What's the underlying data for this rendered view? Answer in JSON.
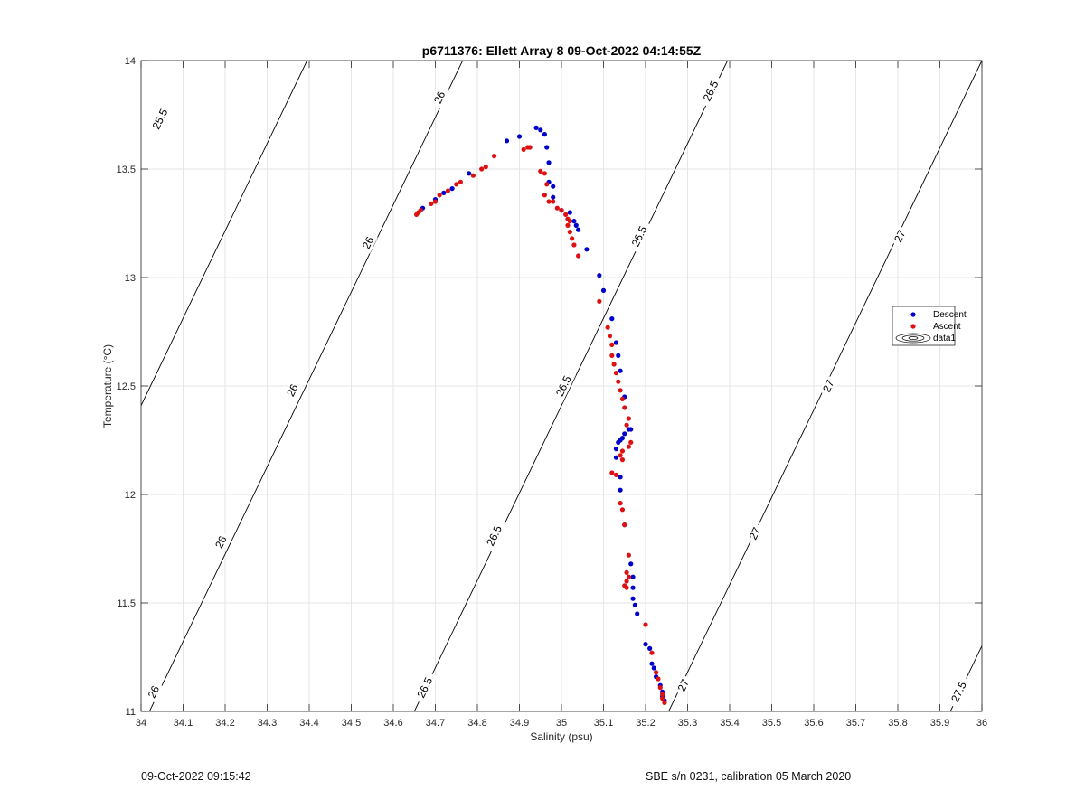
{
  "chart_data": {
    "type": "scatter",
    "title": "p6711376: Ellett Array 8 09-Oct-2022 04:14:55Z",
    "xlabel": "Salinity (psu)",
    "ylabel": "Temperature (°C)",
    "xlim": [
      34,
      36
    ],
    "ylim": [
      11,
      14
    ],
    "x_ticks": [
      34,
      34.1,
      34.2,
      34.3,
      34.4,
      34.5,
      34.6,
      34.7,
      34.8,
      34.9,
      35,
      35.1,
      35.2,
      35.3,
      35.4,
      35.5,
      35.6,
      35.7,
      35.8,
      35.9,
      36
    ],
    "x_tick_labels": [
      "34",
      "34.1",
      "34.2",
      "34.3",
      "34.4",
      "34.5",
      "34.6",
      "34.7",
      "34.8",
      "34.9",
      "35",
      "35.1",
      "35.2",
      "35.3",
      "35.4",
      "35.5",
      "35.6",
      "35.7",
      "35.8",
      "35.9",
      "36"
    ],
    "y_ticks": [
      11,
      11.5,
      12,
      12.5,
      13,
      13.5,
      14
    ],
    "y_tick_labels": [
      "11",
      "11.5",
      "12",
      "12.5",
      "13",
      "13.5",
      "14"
    ],
    "grid": true,
    "legend_position": "right",
    "series": [
      {
        "name": "Descent",
        "color": "#0000cc",
        "points": [
          [
            34.66,
            13.3
          ],
          [
            34.67,
            13.32
          ],
          [
            34.7,
            13.36
          ],
          [
            34.72,
            13.39
          ],
          [
            34.74,
            13.41
          ],
          [
            34.78,
            13.48
          ],
          [
            34.87,
            13.63
          ],
          [
            34.9,
            13.65
          ],
          [
            34.94,
            13.69
          ],
          [
            34.95,
            13.68
          ],
          [
            34.96,
            13.66
          ],
          [
            34.965,
            13.6
          ],
          [
            34.97,
            13.53
          ],
          [
            34.97,
            13.44
          ],
          [
            34.98,
            13.42
          ],
          [
            34.98,
            13.37
          ],
          [
            35.0,
            13.31
          ],
          [
            35.02,
            13.3
          ],
          [
            35.03,
            13.26
          ],
          [
            35.035,
            13.24
          ],
          [
            35.04,
            13.22
          ],
          [
            35.06,
            13.13
          ],
          [
            35.09,
            13.01
          ],
          [
            35.1,
            12.94
          ],
          [
            35.12,
            12.81
          ],
          [
            35.13,
            12.7
          ],
          [
            35.135,
            12.64
          ],
          [
            35.14,
            12.57
          ],
          [
            35.15,
            12.45
          ],
          [
            35.16,
            12.3
          ],
          [
            35.165,
            12.3
          ],
          [
            35.15,
            12.28
          ],
          [
            35.145,
            12.26
          ],
          [
            35.14,
            12.25
          ],
          [
            35.135,
            12.24
          ],
          [
            35.13,
            12.21
          ],
          [
            35.13,
            12.17
          ],
          [
            35.14,
            12.08
          ],
          [
            35.14,
            12.02
          ],
          [
            35.15,
            11.86
          ],
          [
            35.165,
            11.68
          ],
          [
            35.17,
            11.62
          ],
          [
            35.17,
            11.57
          ],
          [
            35.17,
            11.52
          ],
          [
            35.175,
            11.49
          ],
          [
            35.18,
            11.45
          ],
          [
            35.2,
            11.31
          ],
          [
            35.21,
            11.29
          ],
          [
            35.215,
            11.22
          ],
          [
            35.22,
            11.2
          ],
          [
            35.225,
            11.16
          ],
          [
            35.235,
            11.12
          ],
          [
            35.24,
            11.09
          ],
          [
            35.24,
            11.07
          ],
          [
            35.245,
            11.05
          ]
        ]
      },
      {
        "name": "Ascent",
        "color": "#dd1111",
        "points": [
          [
            34.655,
            13.29
          ],
          [
            34.66,
            13.3
          ],
          [
            34.665,
            13.31
          ],
          [
            34.69,
            13.34
          ],
          [
            34.7,
            13.35
          ],
          [
            34.71,
            13.38
          ],
          [
            34.73,
            13.4
          ],
          [
            34.75,
            13.43
          ],
          [
            34.76,
            13.44
          ],
          [
            34.79,
            13.47
          ],
          [
            34.81,
            13.5
          ],
          [
            34.82,
            13.51
          ],
          [
            34.84,
            13.56
          ],
          [
            34.91,
            13.59
          ],
          [
            34.92,
            13.6
          ],
          [
            34.925,
            13.6
          ],
          [
            34.95,
            13.49
          ],
          [
            34.96,
            13.48
          ],
          [
            34.965,
            13.43
          ],
          [
            34.96,
            13.38
          ],
          [
            34.97,
            13.35
          ],
          [
            34.98,
            13.35
          ],
          [
            34.99,
            13.32
          ],
          [
            35.0,
            13.31
          ],
          [
            35.01,
            13.29
          ],
          [
            35.015,
            13.27
          ],
          [
            35.02,
            13.26
          ],
          [
            35.015,
            13.24
          ],
          [
            35.02,
            13.21
          ],
          [
            35.025,
            13.18
          ],
          [
            35.03,
            13.15
          ],
          [
            35.04,
            13.1
          ],
          [
            35.09,
            12.89
          ],
          [
            35.11,
            12.77
          ],
          [
            35.115,
            12.73
          ],
          [
            35.12,
            12.69
          ],
          [
            35.12,
            12.64
          ],
          [
            35.125,
            12.6
          ],
          [
            35.13,
            12.56
          ],
          [
            35.135,
            12.52
          ],
          [
            35.14,
            12.48
          ],
          [
            35.145,
            12.44
          ],
          [
            35.15,
            12.4
          ],
          [
            35.16,
            12.35
          ],
          [
            35.155,
            12.32
          ],
          [
            35.165,
            12.24
          ],
          [
            35.16,
            12.22
          ],
          [
            35.145,
            12.2
          ],
          [
            35.14,
            12.18
          ],
          [
            35.145,
            12.16
          ],
          [
            35.12,
            12.1
          ],
          [
            35.13,
            12.09
          ],
          [
            35.14,
            11.96
          ],
          [
            35.145,
            11.93
          ],
          [
            35.15,
            11.86
          ],
          [
            35.16,
            11.72
          ],
          [
            35.155,
            11.64
          ],
          [
            35.16,
            11.62
          ],
          [
            35.155,
            11.6
          ],
          [
            35.15,
            11.58
          ],
          [
            35.155,
            11.57
          ],
          [
            35.2,
            11.4
          ],
          [
            35.215,
            11.27
          ],
          [
            35.225,
            11.18
          ],
          [
            35.23,
            11.15
          ],
          [
            35.235,
            11.11
          ],
          [
            35.24,
            11.08
          ],
          [
            35.24,
            11.06
          ],
          [
            35.245,
            11.04
          ]
        ]
      },
      {
        "name": "data1",
        "color": "#000000",
        "points": []
      }
    ],
    "contours": [
      {
        "level": "25.5",
        "s_at_t11": 33.65,
        "labels": [
          {
            "text": "25.5",
            "s": 34.045,
            "t": 13.73
          }
        ]
      },
      {
        "level": "26",
        "s_at_t11": 34.02,
        "labels": [
          {
            "text": "26",
            "s": 34.03,
            "t": 11.09
          },
          {
            "text": "26",
            "s": 34.19,
            "t": 11.78
          },
          {
            "text": "26",
            "s": 34.36,
            "t": 12.48
          },
          {
            "text": "26",
            "s": 34.54,
            "t": 13.16
          },
          {
            "text": "26",
            "s": 34.71,
            "t": 13.83
          }
        ]
      },
      {
        "level": "26.5",
        "s_at_t11": 34.65,
        "labels": [
          {
            "text": "26.5",
            "s": 34.675,
            "t": 11.11
          },
          {
            "text": "26.5",
            "s": 34.84,
            "t": 11.81
          },
          {
            "text": "26.5",
            "s": 35.005,
            "t": 12.5
          },
          {
            "text": "26.5",
            "s": 35.185,
            "t": 13.19
          },
          {
            "text": "26.5",
            "s": 35.355,
            "t": 13.86
          }
        ]
      },
      {
        "level": "27",
        "s_at_t11": 35.255,
        "labels": [
          {
            "text": "27",
            "s": 35.29,
            "t": 11.12
          },
          {
            "text": "27",
            "s": 35.46,
            "t": 11.82
          },
          {
            "text": "27",
            "s": 35.635,
            "t": 12.5
          },
          {
            "text": "27",
            "s": 35.805,
            "t": 13.19
          }
        ]
      },
      {
        "level": "27.5",
        "s_at_t11": 35.925,
        "labels": [
          {
            "text": "27.5",
            "s": 35.945,
            "t": 11.09
          }
        ]
      }
    ]
  },
  "legend": {
    "entries": [
      {
        "label": "Descent",
        "marker": "dot",
        "color": "#0000cc"
      },
      {
        "label": "Ascent",
        "marker": "dot",
        "color": "#dd1111"
      },
      {
        "label": "data1",
        "marker": "contour-icon",
        "color": "#000000"
      }
    ]
  },
  "footer": {
    "left": "09-Oct-2022 09:15:42",
    "right": "SBE s/n 0231, calibration 05 March 2020"
  }
}
